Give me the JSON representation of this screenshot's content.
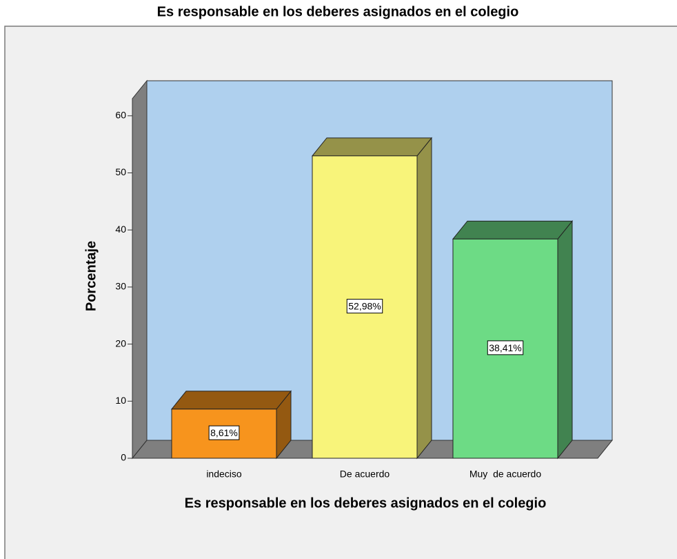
{
  "chart_data": {
    "type": "bar3d",
    "title": "Es responsable en los deberes asignados en el colegio",
    "x_label": "Es responsable en los deberes asignados en el colegio",
    "y_label": "Porcentaje",
    "categories": [
      "indeciso",
      "De acuerdo",
      "Muy  de acuerdo"
    ],
    "values": [
      8.61,
      52.98,
      38.41
    ],
    "value_labels": [
      "8,61%",
      "52,98%",
      "38,41%"
    ],
    "colors": [
      "#f7941d",
      "#f8f47a",
      "#6ddb85"
    ],
    "ylim": [
      0,
      63
    ],
    "yticks": [
      0,
      10,
      20,
      30,
      40,
      50,
      60
    ]
  }
}
